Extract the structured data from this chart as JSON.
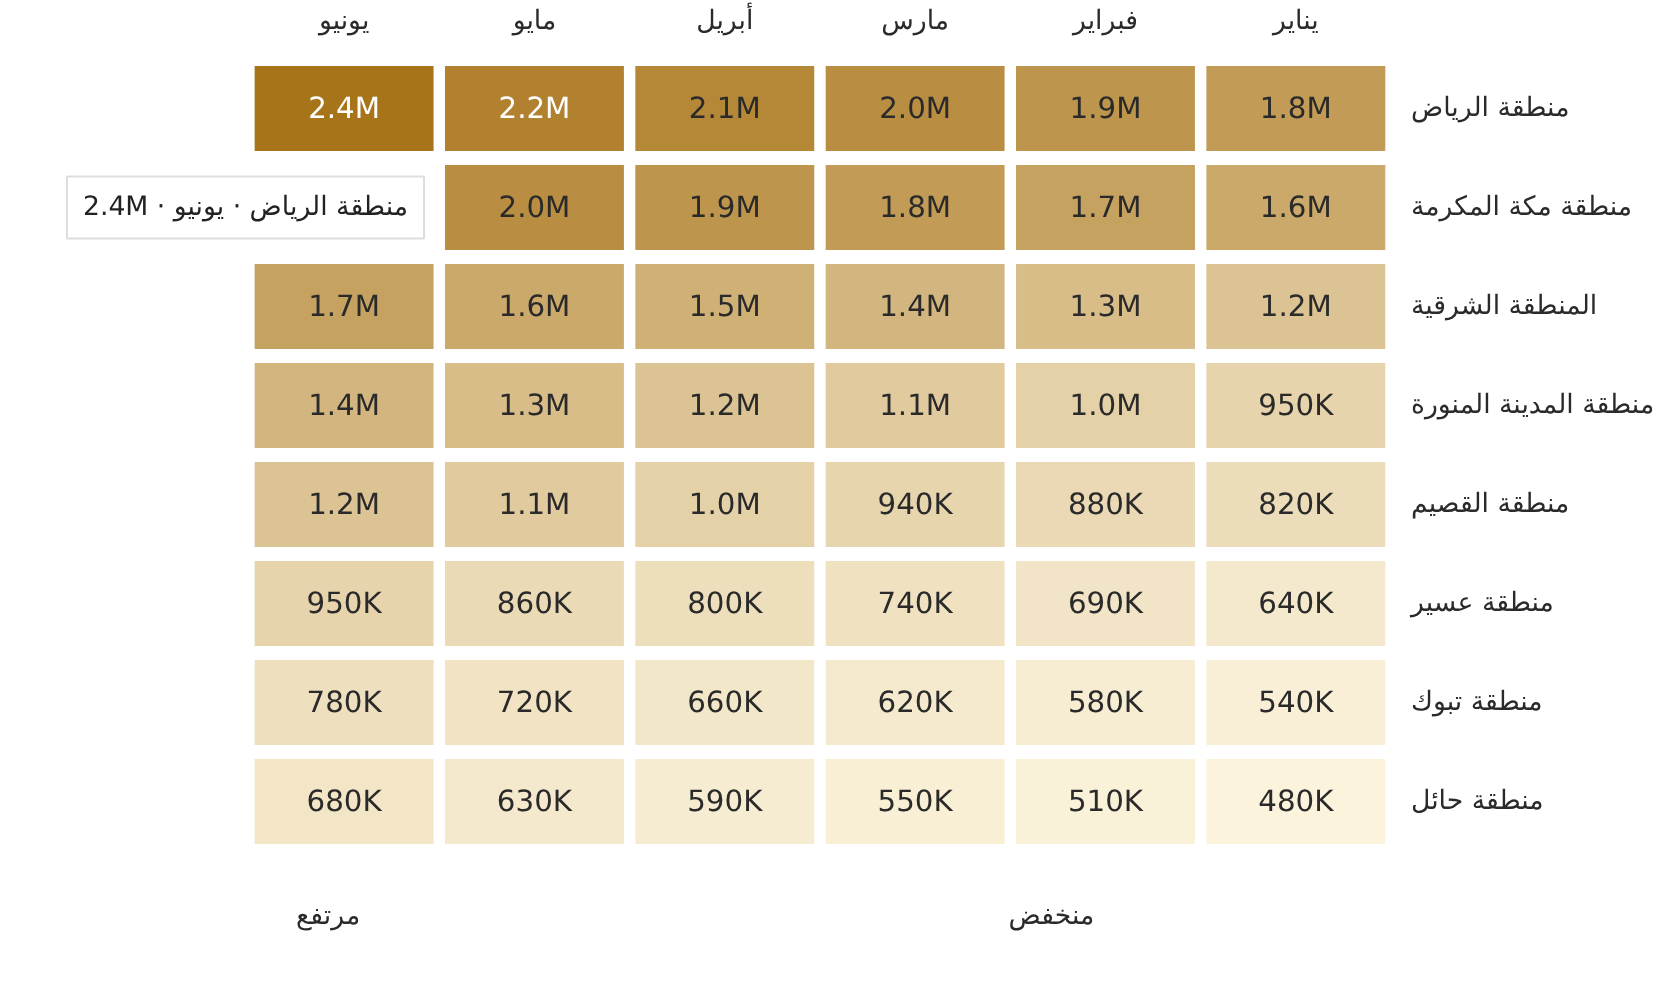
{
  "chart_data": {
    "type": "heatmap",
    "categories": [
      "يونيو",
      "مايو",
      "أبريل",
      "مارس",
      "فبراير",
      "يناير"
    ],
    "y_categories": [
      "منطقة الرياض",
      "منطقة مكة المكرمة",
      "المنطقة الشرقية",
      "منطقة المدينة المنورة",
      "منطقة القصيم",
      "منطقة عسير",
      "منطقة تبوك",
      "منطقة حائل"
    ],
    "cells": [
      [
        2400000,
        2200000,
        2100000,
        2000000,
        1900000,
        1800000
      ],
      [
        null,
        2000000,
        1900000,
        1800000,
        1700000,
        1600000
      ],
      [
        1700000,
        1600000,
        1500000,
        1400000,
        1300000,
        1200000
      ],
      [
        1400000,
        1300000,
        1200000,
        1100000,
        1000000,
        950000
      ],
      [
        1200000,
        1100000,
        1000000,
        940000,
        880000,
        820000
      ],
      [
        950000,
        860000,
        800000,
        740000,
        690000,
        640000
      ],
      [
        780000,
        720000,
        660000,
        620000,
        580000,
        540000
      ],
      [
        680000,
        630000,
        590000,
        550000,
        510000,
        480000
      ]
    ],
    "cell_labels": [
      [
        "2.4M",
        "2.2M",
        "2.1M",
        "2.0M",
        "1.9M",
        "1.8M"
      ],
      [
        null,
        "2.0M",
        "1.9M",
        "1.8M",
        "1.7M",
        "1.6M"
      ],
      [
        "1.7M",
        "1.6M",
        "1.5M",
        "1.4M",
        "1.3M",
        "1.2M"
      ],
      [
        "1.4M",
        "1.3M",
        "1.2M",
        "1.1M",
        "1.0M",
        "950K"
      ],
      [
        "1.2M",
        "1.1M",
        "1.0M",
        "940K",
        "880K",
        "820K"
      ],
      [
        "950K",
        "860K",
        "800K",
        "740K",
        "690K",
        "640K"
      ],
      [
        "780K",
        "720K",
        "660K",
        "620K",
        "580K",
        "540K"
      ],
      [
        "680K",
        "630K",
        "590K",
        "550K",
        "510K",
        "480K"
      ]
    ],
    "annotations": [
      "منطقة الرياض · يونيو · 2.4M",
      "مرتفع",
      "منخفض"
    ]
  }
}
